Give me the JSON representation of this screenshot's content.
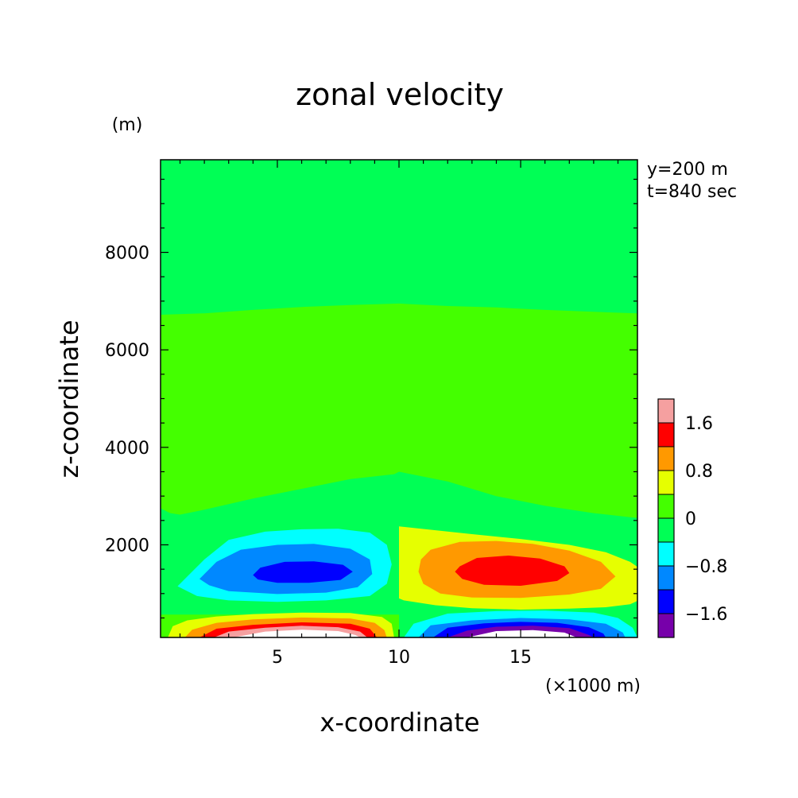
{
  "chart_data": {
    "type": "heatmap",
    "title": "zonal velocity",
    "xlabel": "x-coordinate",
    "ylabel": "z-coordinate",
    "x_unit": "(×1000 m)",
    "y_unit": "(m)",
    "annotations": [
      "y=200 m",
      "t=840 sec"
    ],
    "xlim": [
      0.2,
      19.8
    ],
    "ylim": [
      100,
      9900
    ],
    "x_ticks": [
      5,
      10,
      15
    ],
    "y_ticks": [
      2000,
      4000,
      6000,
      8000
    ],
    "grid": false,
    "legend_position": "right",
    "colorbar": {
      "levels": [
        {
          "min": 1.6,
          "max": 2.0,
          "color": "#f5a0a0"
        },
        {
          "min": 1.2,
          "max": 1.6,
          "color": "#ff0000"
        },
        {
          "min": 0.8,
          "max": 1.2,
          "color": "#ff9900"
        },
        {
          "min": 0.4,
          "max": 0.8,
          "color": "#e6ff00"
        },
        {
          "min": 0.0,
          "max": 0.4,
          "color": "#44ff00"
        },
        {
          "min": -0.4,
          "max": 0.0,
          "color": "#00ff55"
        },
        {
          "min": -0.8,
          "max": -0.4,
          "color": "#00ffff"
        },
        {
          "min": -1.2,
          "max": -0.8,
          "color": "#0088ff"
        },
        {
          "min": -1.6,
          "max": -1.2,
          "color": "#0000ff"
        },
        {
          "min": -2.0,
          "max": -1.6,
          "color": "#7700aa"
        }
      ],
      "tick_labels": [
        {
          "value": 1.6,
          "label": "1.6"
        },
        {
          "value": 0.8,
          "label": "0.8"
        },
        {
          "value": 0.0,
          "label": "0"
        },
        {
          "value": -0.8,
          "label": "−0.8"
        },
        {
          "value": -1.6,
          "label": "−1.6"
        }
      ]
    },
    "regions": [
      {
        "level": "0.0",
        "color": "#44ff00",
        "points": [
          [
            10,
            3500
          ],
          [
            12,
            3300
          ],
          [
            14,
            3000
          ],
          [
            16,
            2800
          ],
          [
            18,
            2650
          ],
          [
            19.8,
            2550
          ],
          [
            19.8,
            6750
          ],
          [
            18,
            6780
          ],
          [
            16,
            6820
          ],
          [
            14,
            6870
          ],
          [
            12,
            6900
          ],
          [
            10,
            6950
          ],
          [
            8,
            6920
          ],
          [
            6,
            6880
          ],
          [
            4,
            6820
          ],
          [
            2,
            6750
          ],
          [
            0.2,
            6720
          ],
          [
            0.2,
            2750
          ],
          [
            0.6,
            2650
          ],
          [
            1,
            2620
          ],
          [
            2,
            2720
          ],
          [
            4,
            2950
          ],
          [
            6,
            3150
          ],
          [
            8,
            3350
          ],
          [
            9.8,
            3450
          ]
        ]
      },
      {
        "level": "0.0",
        "color": "#44ff00",
        "points": [
          [
            0.2,
            100
          ],
          [
            10,
            100
          ],
          [
            10,
            570
          ],
          [
            0.2,
            570
          ]
        ]
      },
      {
        "level": "0.4",
        "color": "#e6ff00",
        "points": [
          [
            10,
            2380
          ],
          [
            11.5,
            2300
          ],
          [
            13,
            2220
          ],
          [
            15,
            2120
          ],
          [
            17,
            2000
          ],
          [
            18.5,
            1850
          ],
          [
            19.5,
            1650
          ],
          [
            19.8,
            1550
          ],
          [
            19.8,
            850
          ],
          [
            19.5,
            780
          ],
          [
            18.5,
            720
          ],
          [
            17,
            690
          ],
          [
            15,
            670
          ],
          [
            13,
            700
          ],
          [
            11.5,
            760
          ],
          [
            10.2,
            860
          ],
          [
            10,
            900
          ]
        ]
      },
      {
        "level": "0.4",
        "color": "#e6ff00",
        "points": [
          [
            0.5,
            100
          ],
          [
            0.7,
            330
          ],
          [
            1.3,
            450
          ],
          [
            2.5,
            530
          ],
          [
            4,
            580
          ],
          [
            6,
            610
          ],
          [
            8,
            600
          ],
          [
            9.3,
            520
          ],
          [
            9.7,
            380
          ],
          [
            9.8,
            100
          ]
        ]
      },
      {
        "level": "0.8",
        "color": "#ff9900",
        "points": [
          [
            11.3,
            1900
          ],
          [
            12.5,
            2060
          ],
          [
            14,
            2080
          ],
          [
            15.5,
            2020
          ],
          [
            17,
            1880
          ],
          [
            18.3,
            1650
          ],
          [
            18.9,
            1350
          ],
          [
            18.3,
            1100
          ],
          [
            17,
            980
          ],
          [
            15,
            910
          ],
          [
            13,
            920
          ],
          [
            11.7,
            1000
          ],
          [
            11,
            1200
          ],
          [
            10.8,
            1450
          ],
          [
            10.9,
            1700
          ]
        ]
      },
      {
        "level": "0.8",
        "color": "#ff9900",
        "points": [
          [
            1.2,
            100
          ],
          [
            1.5,
            260
          ],
          [
            2.5,
            400
          ],
          [
            4,
            470
          ],
          [
            6,
            510
          ],
          [
            8,
            490
          ],
          [
            9,
            400
          ],
          [
            9.4,
            250
          ],
          [
            9.5,
            100
          ]
        ]
      },
      {
        "level": "1.2",
        "color": "#ff0000",
        "points": [
          [
            12.5,
            1560
          ],
          [
            13.2,
            1730
          ],
          [
            14.5,
            1780
          ],
          [
            15.8,
            1720
          ],
          [
            16.8,
            1560
          ],
          [
            17,
            1420
          ],
          [
            16.5,
            1260
          ],
          [
            15,
            1160
          ],
          [
            13.5,
            1180
          ],
          [
            12.6,
            1300
          ],
          [
            12.3,
            1450
          ]
        ]
      },
      {
        "level": "1.2",
        "color": "#ff0000",
        "points": [
          [
            1.8,
            100
          ],
          [
            2.5,
            280
          ],
          [
            4,
            360
          ],
          [
            6,
            410
          ],
          [
            8,
            380
          ],
          [
            8.8,
            280
          ],
          [
            9.1,
            100
          ]
        ]
      },
      {
        "level": "1.6",
        "color": "#f5a0a0",
        "points": [
          [
            2.4,
            100
          ],
          [
            3,
            220
          ],
          [
            4.5,
            300
          ],
          [
            6,
            340
          ],
          [
            7.5,
            310
          ],
          [
            8.4,
            220
          ],
          [
            8.7,
            100
          ]
        ]
      },
      {
        "level": "2.0",
        "color": "#ffffff",
        "points": [
          [
            3.2,
            100
          ],
          [
            4.5,
            220
          ],
          [
            6,
            260
          ],
          [
            7.5,
            230
          ],
          [
            8.2,
            150
          ],
          [
            8.4,
            100
          ]
        ]
      },
      {
        "level": "-0.4",
        "color": "#00ffff",
        "points": [
          [
            0.9,
            1150
          ],
          [
            1.3,
            1350
          ],
          [
            2,
            1700
          ],
          [
            3,
            2100
          ],
          [
            4.5,
            2270
          ],
          [
            6,
            2320
          ],
          [
            7.5,
            2330
          ],
          [
            8.8,
            2250
          ],
          [
            9.5,
            2000
          ],
          [
            9.7,
            1600
          ],
          [
            9.5,
            1200
          ],
          [
            8.8,
            950
          ],
          [
            7,
            860
          ],
          [
            5,
            830
          ],
          [
            3,
            860
          ],
          [
            1.7,
            950
          ]
        ]
      },
      {
        "level": "-0.4",
        "color": "#00ffff",
        "points": [
          [
            10.2,
            100
          ],
          [
            10.6,
            380
          ],
          [
            12,
            590
          ],
          [
            14,
            640
          ],
          [
            16,
            650
          ],
          [
            18,
            610
          ],
          [
            19,
            500
          ],
          [
            19.6,
            300
          ],
          [
            19.8,
            100
          ]
        ]
      },
      {
        "level": "-0.8",
        "color": "#0088ff",
        "points": [
          [
            1.8,
            1300
          ],
          [
            2.5,
            1650
          ],
          [
            3.5,
            1900
          ],
          [
            5,
            2000
          ],
          [
            6.5,
            2020
          ],
          [
            8,
            1920
          ],
          [
            8.8,
            1700
          ],
          [
            8.9,
            1400
          ],
          [
            8.3,
            1130
          ],
          [
            7,
            1020
          ],
          [
            5,
            990
          ],
          [
            3,
            1050
          ],
          [
            2.2,
            1170
          ]
        ]
      },
      {
        "level": "-0.8",
        "color": "#0088ff",
        "points": [
          [
            10.8,
            100
          ],
          [
            11.3,
            350
          ],
          [
            13,
            450
          ],
          [
            15,
            500
          ],
          [
            17,
            470
          ],
          [
            18.5,
            380
          ],
          [
            19.2,
            200
          ],
          [
            19.3,
            100
          ]
        ]
      },
      {
        "level": "-1.2",
        "color": "#0000ff",
        "points": [
          [
            4,
            1380
          ],
          [
            4.3,
            1530
          ],
          [
            5.3,
            1650
          ],
          [
            6.5,
            1660
          ],
          [
            7.7,
            1590
          ],
          [
            8.1,
            1450
          ],
          [
            7.6,
            1280
          ],
          [
            6.3,
            1220
          ],
          [
            5,
            1220
          ],
          [
            4.2,
            1290
          ]
        ]
      },
      {
        "level": "-1.2",
        "color": "#0000ff",
        "points": [
          [
            11.4,
            100
          ],
          [
            12,
            300
          ],
          [
            13.5,
            390
          ],
          [
            15,
            420
          ],
          [
            16.5,
            400
          ],
          [
            17.8,
            310
          ],
          [
            18.4,
            180
          ],
          [
            18.5,
            100
          ]
        ]
      },
      {
        "level": "-1.6",
        "color": "#7700aa",
        "points": [
          [
            12,
            100
          ],
          [
            12.8,
            240
          ],
          [
            14,
            320
          ],
          [
            15.5,
            340
          ],
          [
            17,
            290
          ],
          [
            17.8,
            150
          ],
          [
            18,
            100
          ]
        ]
      },
      {
        "level": "-2.0",
        "color": "#ffffff",
        "points": [
          [
            12.8,
            100
          ],
          [
            14,
            230
          ],
          [
            15.5,
            250
          ],
          [
            16.8,
            200
          ],
          [
            17.3,
            100
          ]
        ]
      }
    ]
  }
}
